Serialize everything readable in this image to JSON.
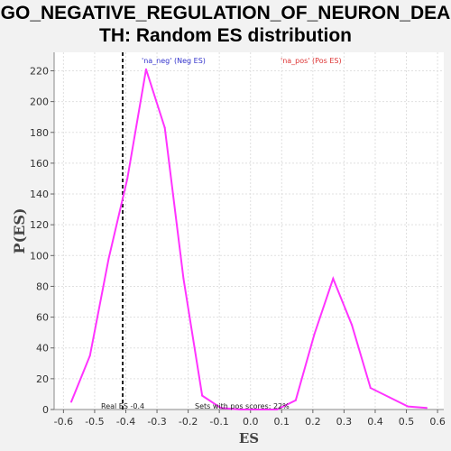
{
  "chart_data": {
    "type": "line",
    "title": "GO_NEGATIVE_REGULATION_OF_NEURON_DEATH: Random ES distribution",
    "title_lines": [
      "GO_NEGATIVE_REGULATION_OF_NEURON_DEA",
      "TH: Random ES distribution"
    ],
    "xlabel": "ES",
    "ylabel": "P(ES)",
    "xlim": [
      -0.63,
      0.62
    ],
    "ylim": [
      0,
      232
    ],
    "x_ticks": [
      -0.6,
      -0.5,
      -0.4,
      -0.3,
      -0.2,
      -0.1,
      0.0,
      0.1,
      0.2,
      0.3,
      0.4,
      0.5,
      0.6
    ],
    "x_tick_labels": [
      "-0.6",
      "-0.5",
      "-0.4",
      "-0.3",
      "-0.2",
      "-0.1",
      "0.0",
      "0.1",
      "0.2",
      "0.3",
      "0.4",
      "0.5",
      "0.6"
    ],
    "y_ticks": [
      0,
      20,
      40,
      60,
      80,
      100,
      120,
      140,
      160,
      180,
      200,
      220
    ],
    "y_tick_labels": [
      "0",
      "20",
      "40",
      "60",
      "80",
      "100",
      "120",
      "140",
      "160",
      "180",
      "200",
      "220"
    ],
    "grid": true,
    "series": [
      {
        "color": "#ff33ff",
        "x": [
          -0.575,
          -0.515,
          -0.455,
          -0.395,
          -0.335,
          -0.275,
          -0.215,
          -0.155,
          -0.095,
          -0.035,
          0.025,
          0.085,
          0.145,
          0.205,
          0.265,
          0.325,
          0.385,
          0.445,
          0.505,
          0.565
        ],
        "y": [
          5,
          35,
          98,
          150,
          221,
          183,
          85,
          9,
          1,
          0,
          0,
          0,
          6,
          49,
          85,
          55,
          14,
          8,
          2,
          1
        ]
      }
    ],
    "real_es": {
      "x": -0.41,
      "label": "Real ES -0.4"
    },
    "annotations": {
      "neg_label": "'na_neg' (Neg ES)",
      "neg_color": "#3333cc",
      "pos_label": "'na_pos' (Pos ES)",
      "pos_color": "#dd3333",
      "pos_scores_label": "Sets with pos scores: 22%"
    }
  }
}
